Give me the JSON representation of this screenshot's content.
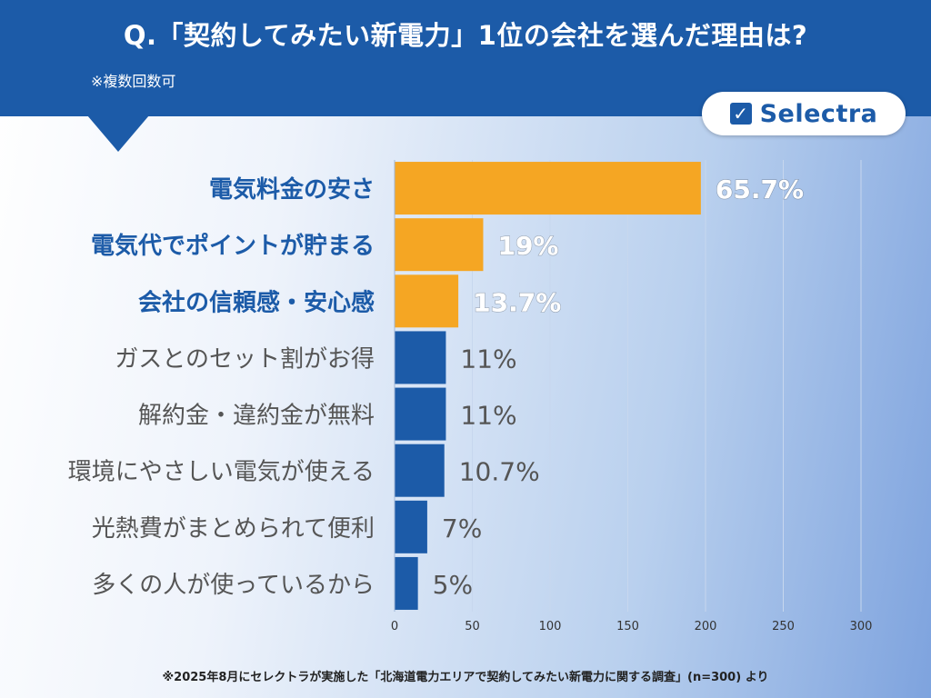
{
  "header": {
    "title": "Q.「契約してみたい新電力」1位の会社を選んだ理由は?",
    "subtitle": "※複数回数可"
  },
  "logo": {
    "check_glyph": "✓",
    "text": "Selectra"
  },
  "colors": {
    "header": "#1c5ba8",
    "highlight_bar": "#f5a623",
    "normal_bar": "#1c5ba8",
    "highlight_label": "#1c5ba8",
    "normal_label": "#555555"
  },
  "chart_data": {
    "type": "bar",
    "orientation": "horizontal",
    "categories": [
      "電気料金の安さ",
      "電気代でポイントが貯まる",
      "会社の信頼感・安心感",
      "ガスとのセット割がお得",
      "解約金・違約金が無料",
      "環境にやさしい電気が使える",
      "光熱費がまとめられて便利",
      "多くの人が使っているから"
    ],
    "values": [
      197,
      57,
      41,
      33,
      33,
      32,
      21,
      15
    ],
    "labels": [
      "65.7%",
      "19%",
      "13.7%",
      "11%",
      "11%",
      "10.7%",
      "7%",
      "5%"
    ],
    "highlighted": [
      true,
      true,
      true,
      false,
      false,
      false,
      false,
      false
    ],
    "xlim": [
      0,
      300
    ],
    "xticks": [
      0,
      50,
      100,
      150,
      200,
      250,
      300
    ],
    "grid": true
  },
  "footnote": "※2025年8月にセレクトラが実施した「北海道電力エリアで契約してみたい新電力に関する調査」(n=300) より"
}
